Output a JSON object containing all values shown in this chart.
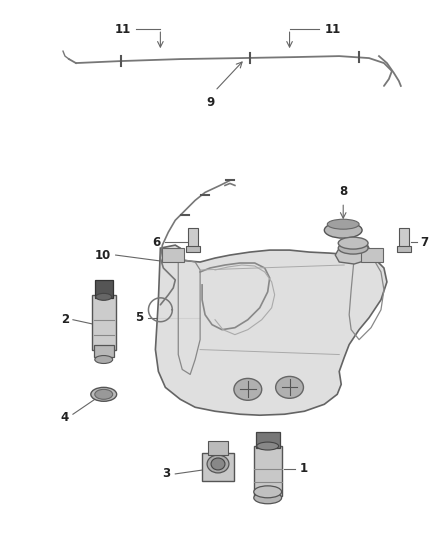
{
  "background_color": "#ffffff",
  "fig_width": 4.38,
  "fig_height": 5.33,
  "dpi": 100,
  "line_color": "#666666",
  "text_color": "#222222",
  "label_fontsize": 8.5
}
